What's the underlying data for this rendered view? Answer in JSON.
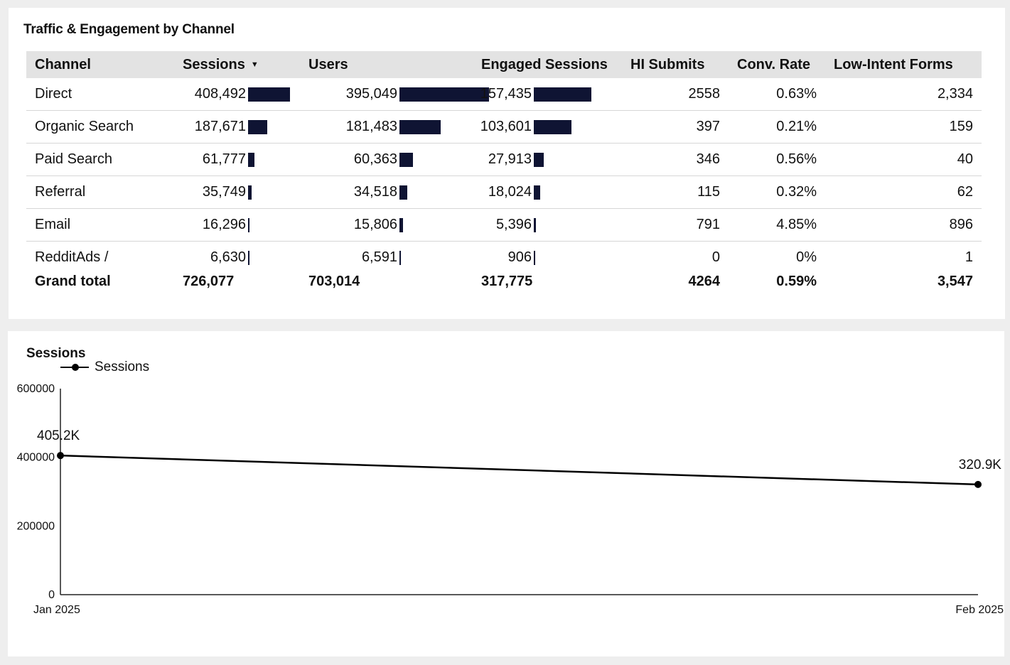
{
  "table": {
    "title": "Traffic & Engagement by Channel",
    "columns": [
      "Channel",
      "Sessions",
      "Users",
      "Engaged Sessions",
      "HI Submits",
      "Conv. Rate",
      "Low-Intent Forms"
    ],
    "rows": [
      {
        "channel": "Direct",
        "sessions": "408,492",
        "users": "395,049",
        "engaged": "157,435",
        "hi_submits": "2558",
        "conv_rate": "0.63%",
        "low_intent": "2,334",
        "sessions_v": 408492,
        "users_v": 395049,
        "engaged_v": 157435
      },
      {
        "channel": "Organic Search",
        "sessions": "187,671",
        "users": "181,483",
        "engaged": "103,601",
        "hi_submits": "397",
        "conv_rate": "0.21%",
        "low_intent": "159",
        "sessions_v": 187671,
        "users_v": 181483,
        "engaged_v": 103601
      },
      {
        "channel": "Paid Search",
        "sessions": "61,777",
        "users": "60,363",
        "engaged": "27,913",
        "hi_submits": "346",
        "conv_rate": "0.56%",
        "low_intent": "40",
        "sessions_v": 61777,
        "users_v": 60363,
        "engaged_v": 27913
      },
      {
        "channel": "Referral",
        "sessions": "35,749",
        "users": "34,518",
        "engaged": "18,024",
        "hi_submits": "115",
        "conv_rate": "0.32%",
        "low_intent": "62",
        "sessions_v": 35749,
        "users_v": 34518,
        "engaged_v": 18024
      },
      {
        "channel": "Email",
        "sessions": "16,296",
        "users": "15,806",
        "engaged": "5,396",
        "hi_submits": "791",
        "conv_rate": "4.85%",
        "low_intent": "896",
        "sessions_v": 16296,
        "users_v": 15806,
        "engaged_v": 5396
      },
      {
        "channel": "RedditAds /",
        "sessions": "6,630",
        "users": "6,591",
        "engaged": "906",
        "hi_submits": "0",
        "conv_rate": "0%",
        "low_intent": "1",
        "sessions_v": 6630,
        "users_v": 6591,
        "engaged_v": 906
      }
    ],
    "total": {
      "label": "Grand total",
      "sessions": "726,077",
      "users": "703,014",
      "engaged": "317,775",
      "hi_submits": "4264",
      "conv_rate": "0.59%",
      "low_intent": "3,547"
    },
    "bar_color": "#0f1433"
  },
  "chart_data": {
    "type": "line",
    "title": "Sessions",
    "series": [
      {
        "name": "Sessions",
        "values": [
          405200,
          320900
        ],
        "labels": [
          "405.2K",
          "320.9K"
        ]
      }
    ],
    "x": [
      "Jan 2025",
      "Feb 2025"
    ],
    "yticks": [
      "600000",
      "400000",
      "200000",
      "0"
    ],
    "ylim": [
      0,
      600000
    ],
    "legend": "top-left",
    "grid": false,
    "line_color": "#000000"
  }
}
